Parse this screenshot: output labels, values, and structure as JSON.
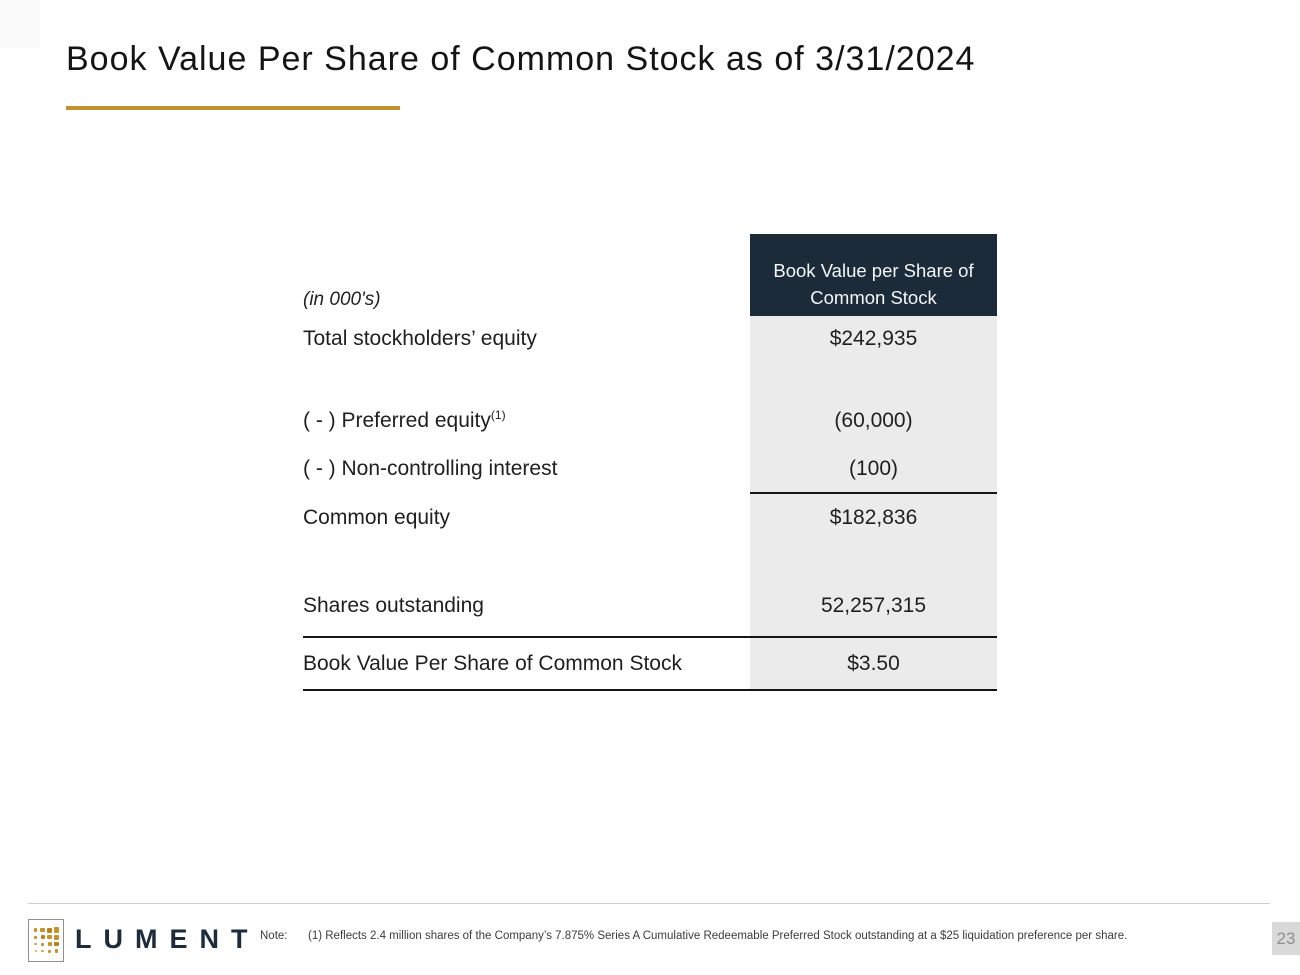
{
  "slide": {
    "title": "Book Value Per Share of Common Stock as of 3/31/2024",
    "page_number": "23"
  },
  "table": {
    "units_label": "(in 000's)",
    "column_header": "Book Value per Share of Common Stock",
    "rows": [
      {
        "label": "Total stockholders’ equity",
        "value": "$242,935"
      },
      {
        "label": "( - ) Preferred equity",
        "sup": "(1)",
        "value": "(60,000)"
      },
      {
        "label": "( - ) Non-controlling interest",
        "value": "(100)"
      },
      {
        "label": "Common equity",
        "value": "$182,836"
      },
      {
        "label": "Shares outstanding",
        "value": "52,257,315"
      },
      {
        "label": "Book Value Per Share of Common Stock",
        "value": "$3.50"
      }
    ]
  },
  "footer": {
    "brand": "LUMENT",
    "note_label": "Note:",
    "note_text": "(1) Reflects 2.4 million shares of the Company’s 7.875% Series A Cumulative Redeemable Preferred Stock outstanding at a $25 liquidation preference per share."
  },
  "colors": {
    "header_navy": "#1C2B3A",
    "accent_gold": "#C4912F",
    "column_gray": "#EBEBEB"
  }
}
